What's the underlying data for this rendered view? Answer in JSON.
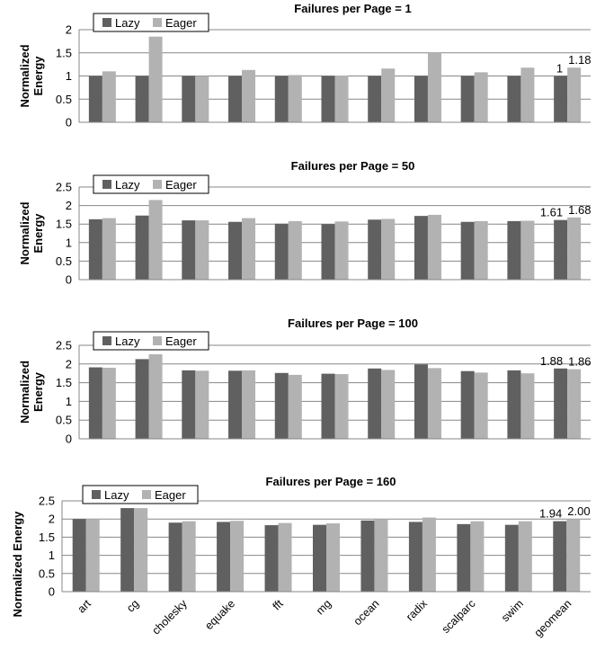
{
  "colors": {
    "lazy": "#606060",
    "eager": "#b2b2b2",
    "grid": "#878787",
    "axis": "#878787"
  },
  "categories": [
    "art",
    "cg",
    "cholesky",
    "equake",
    "fft",
    "mg",
    "ocean",
    "radix",
    "scalparc",
    "swim",
    "geomean"
  ],
  "chart_data": [
    {
      "type": "bar",
      "title": "Failures per Page = 1",
      "ylabel": "Normalized Energy",
      "ylim": [
        0,
        2
      ],
      "yticks": [
        0,
        0.5,
        1,
        1.5,
        2
      ],
      "ytick_labels": [
        "0",
        "0.5",
        "1",
        "1.5",
        "2"
      ],
      "legend": "top-left",
      "series": [
        {
          "name": "Lazy",
          "values": [
            1,
            1,
            1,
            1,
            1,
            1,
            1,
            1,
            1,
            1,
            1
          ]
        },
        {
          "name": "Eager",
          "values": [
            1.1,
            1.85,
            1.0,
            1.13,
            1.02,
            1.01,
            1.16,
            1.5,
            1.08,
            1.18,
            1.18
          ]
        }
      ],
      "data_labels": [
        "1",
        "1.18"
      ]
    },
    {
      "type": "bar",
      "title": "Failures per Page = 50",
      "ylabel": "Normalized Energy",
      "ylim": [
        0,
        2.5
      ],
      "yticks": [
        0,
        0.5,
        1,
        1.5,
        2,
        2.5
      ],
      "ytick_labels": [
        "0",
        "0.5",
        "1",
        "1.5",
        "2",
        "2.5"
      ],
      "legend": "top-left",
      "series": [
        {
          "name": "Lazy",
          "values": [
            1.63,
            1.73,
            1.6,
            1.56,
            1.51,
            1.5,
            1.62,
            1.72,
            1.56,
            1.58,
            1.61
          ]
        },
        {
          "name": "Eager",
          "values": [
            1.66,
            2.15,
            1.6,
            1.66,
            1.58,
            1.57,
            1.64,
            1.75,
            1.58,
            1.59,
            1.68
          ]
        }
      ],
      "data_labels": [
        "1.61",
        "1.68"
      ]
    },
    {
      "type": "bar",
      "title": "Failures per Page = 100",
      "ylabel": "Normalized Energy",
      "ylim": [
        0,
        2.5
      ],
      "yticks": [
        0,
        0.5,
        1,
        1.5,
        2,
        2.5
      ],
      "ytick_labels": [
        "0",
        "0.5",
        "1",
        "1.5",
        "2",
        "2.5"
      ],
      "legend": "top-left",
      "series": [
        {
          "name": "Lazy",
          "values": [
            1.91,
            2.13,
            1.83,
            1.82,
            1.76,
            1.74,
            1.88,
            1.99,
            1.81,
            1.83,
            1.88
          ]
        },
        {
          "name": "Eager",
          "values": [
            1.9,
            2.26,
            1.82,
            1.83,
            1.71,
            1.73,
            1.84,
            1.89,
            1.77,
            1.75,
            1.86
          ]
        }
      ],
      "data_labels": [
        "1.88",
        "1.86"
      ]
    },
    {
      "type": "bar",
      "title": "Failures per Page = 160",
      "ylabel": "Normalized Energy",
      "ylim": [
        0,
        2.5
      ],
      "yticks": [
        0,
        0.5,
        1,
        1.5,
        2,
        2.5
      ],
      "ytick_labels": [
        "0",
        "0.5",
        "1",
        "1.5",
        "2",
        "2.5"
      ],
      "legend": "top-left",
      "series": [
        {
          "name": "Lazy",
          "values": [
            2.0,
            2.3,
            1.9,
            1.92,
            1.83,
            1.84,
            1.96,
            1.92,
            1.86,
            1.84,
            1.94
          ]
        },
        {
          "name": "Eager",
          "values": [
            2.0,
            2.3,
            1.94,
            1.95,
            1.89,
            1.88,
            2.0,
            2.04,
            1.94,
            1.94,
            2.0
          ]
        }
      ],
      "data_labels": [
        "1.94",
        "2.00"
      ]
    }
  ]
}
